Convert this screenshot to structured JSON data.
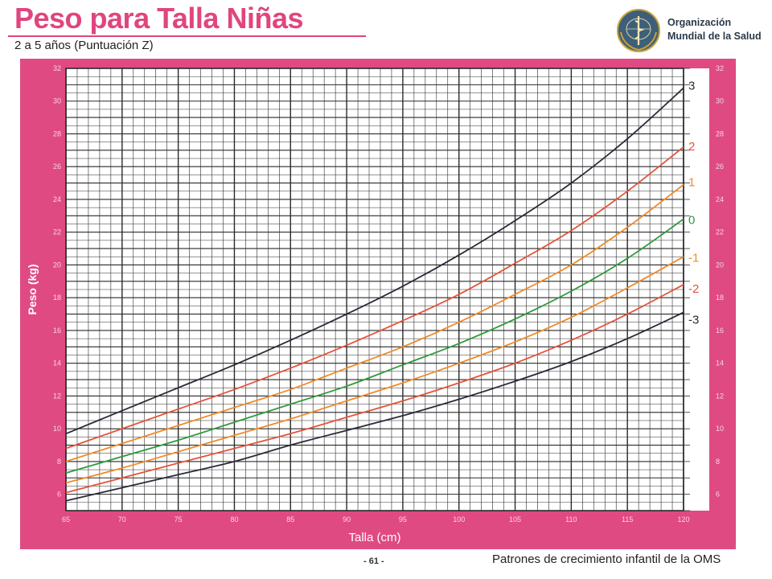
{
  "header": {
    "title": "Peso para Talla Niñas",
    "subtitle": "2 a 5 años (Puntuación Z)"
  },
  "org": {
    "line1": "Organización",
    "line2": "Mundial de la Salud"
  },
  "footer": {
    "page": "- 61 -",
    "credit": "Patrones de crecimiento infantil de la OMS"
  },
  "colors": {
    "frame": "#e04a82",
    "grid": "#2a2a2a",
    "z_black": "#2b2b3a",
    "z_red": "#e5533a",
    "z_orange": "#f08a28",
    "z_green": "#2e9a3a"
  },
  "chart_data": {
    "type": "line",
    "title": "Peso para Talla Niñas",
    "subtitle": "2 a 5 años (Puntuación Z)",
    "xlabel": "Talla (cm)",
    "ylabel": "Peso (kg)",
    "xlim": [
      65,
      120
    ],
    "ylim": [
      5,
      32
    ],
    "x_ticks": [
      65,
      70,
      75,
      80,
      85,
      90,
      95,
      100,
      105,
      110,
      115,
      120
    ],
    "y_ticks": [
      6,
      8,
      10,
      12,
      14,
      16,
      18,
      20,
      22,
      24,
      26,
      28,
      30,
      32
    ],
    "grid": true,
    "x": [
      65,
      70,
      75,
      80,
      85,
      90,
      95,
      100,
      105,
      110,
      115,
      120
    ],
    "series": [
      {
        "name": "3",
        "color": "#2b2b3a",
        "values": [
          9.7,
          11.1,
          12.5,
          13.9,
          15.4,
          17.0,
          18.7,
          20.6,
          22.7,
          25.0,
          27.7,
          30.8
        ]
      },
      {
        "name": "2",
        "color": "#e5533a",
        "values": [
          8.8,
          10.0,
          11.2,
          12.4,
          13.7,
          15.1,
          16.6,
          18.2,
          20.1,
          22.1,
          24.5,
          27.2
        ]
      },
      {
        "name": "1",
        "color": "#f08a28",
        "values": [
          8.0,
          9.1,
          10.2,
          11.3,
          12.4,
          13.7,
          15.0,
          16.5,
          18.2,
          20.0,
          22.3,
          24.9
        ]
      },
      {
        "name": "0",
        "color": "#2e9a3a",
        "values": [
          7.3,
          8.3,
          9.3,
          10.4,
          11.5,
          12.6,
          13.9,
          15.2,
          16.7,
          18.4,
          20.4,
          22.8
        ]
      },
      {
        "name": "-1",
        "color": "#f08a28",
        "values": [
          6.7,
          7.6,
          8.6,
          9.6,
          10.6,
          11.7,
          12.8,
          14.0,
          15.3,
          16.8,
          18.6,
          20.5
        ]
      },
      {
        "name": "-2",
        "color": "#e5533a",
        "values": [
          6.1,
          7.0,
          7.9,
          8.8,
          9.7,
          10.7,
          11.7,
          12.8,
          14.0,
          15.4,
          17.0,
          18.8
        ]
      },
      {
        "name": "-3",
        "color": "#2b2b3a",
        "values": [
          5.6,
          6.4,
          7.2,
          8.0,
          9.0,
          9.9,
          10.8,
          11.8,
          12.9,
          14.1,
          15.5,
          17.1
        ]
      }
    ]
  }
}
